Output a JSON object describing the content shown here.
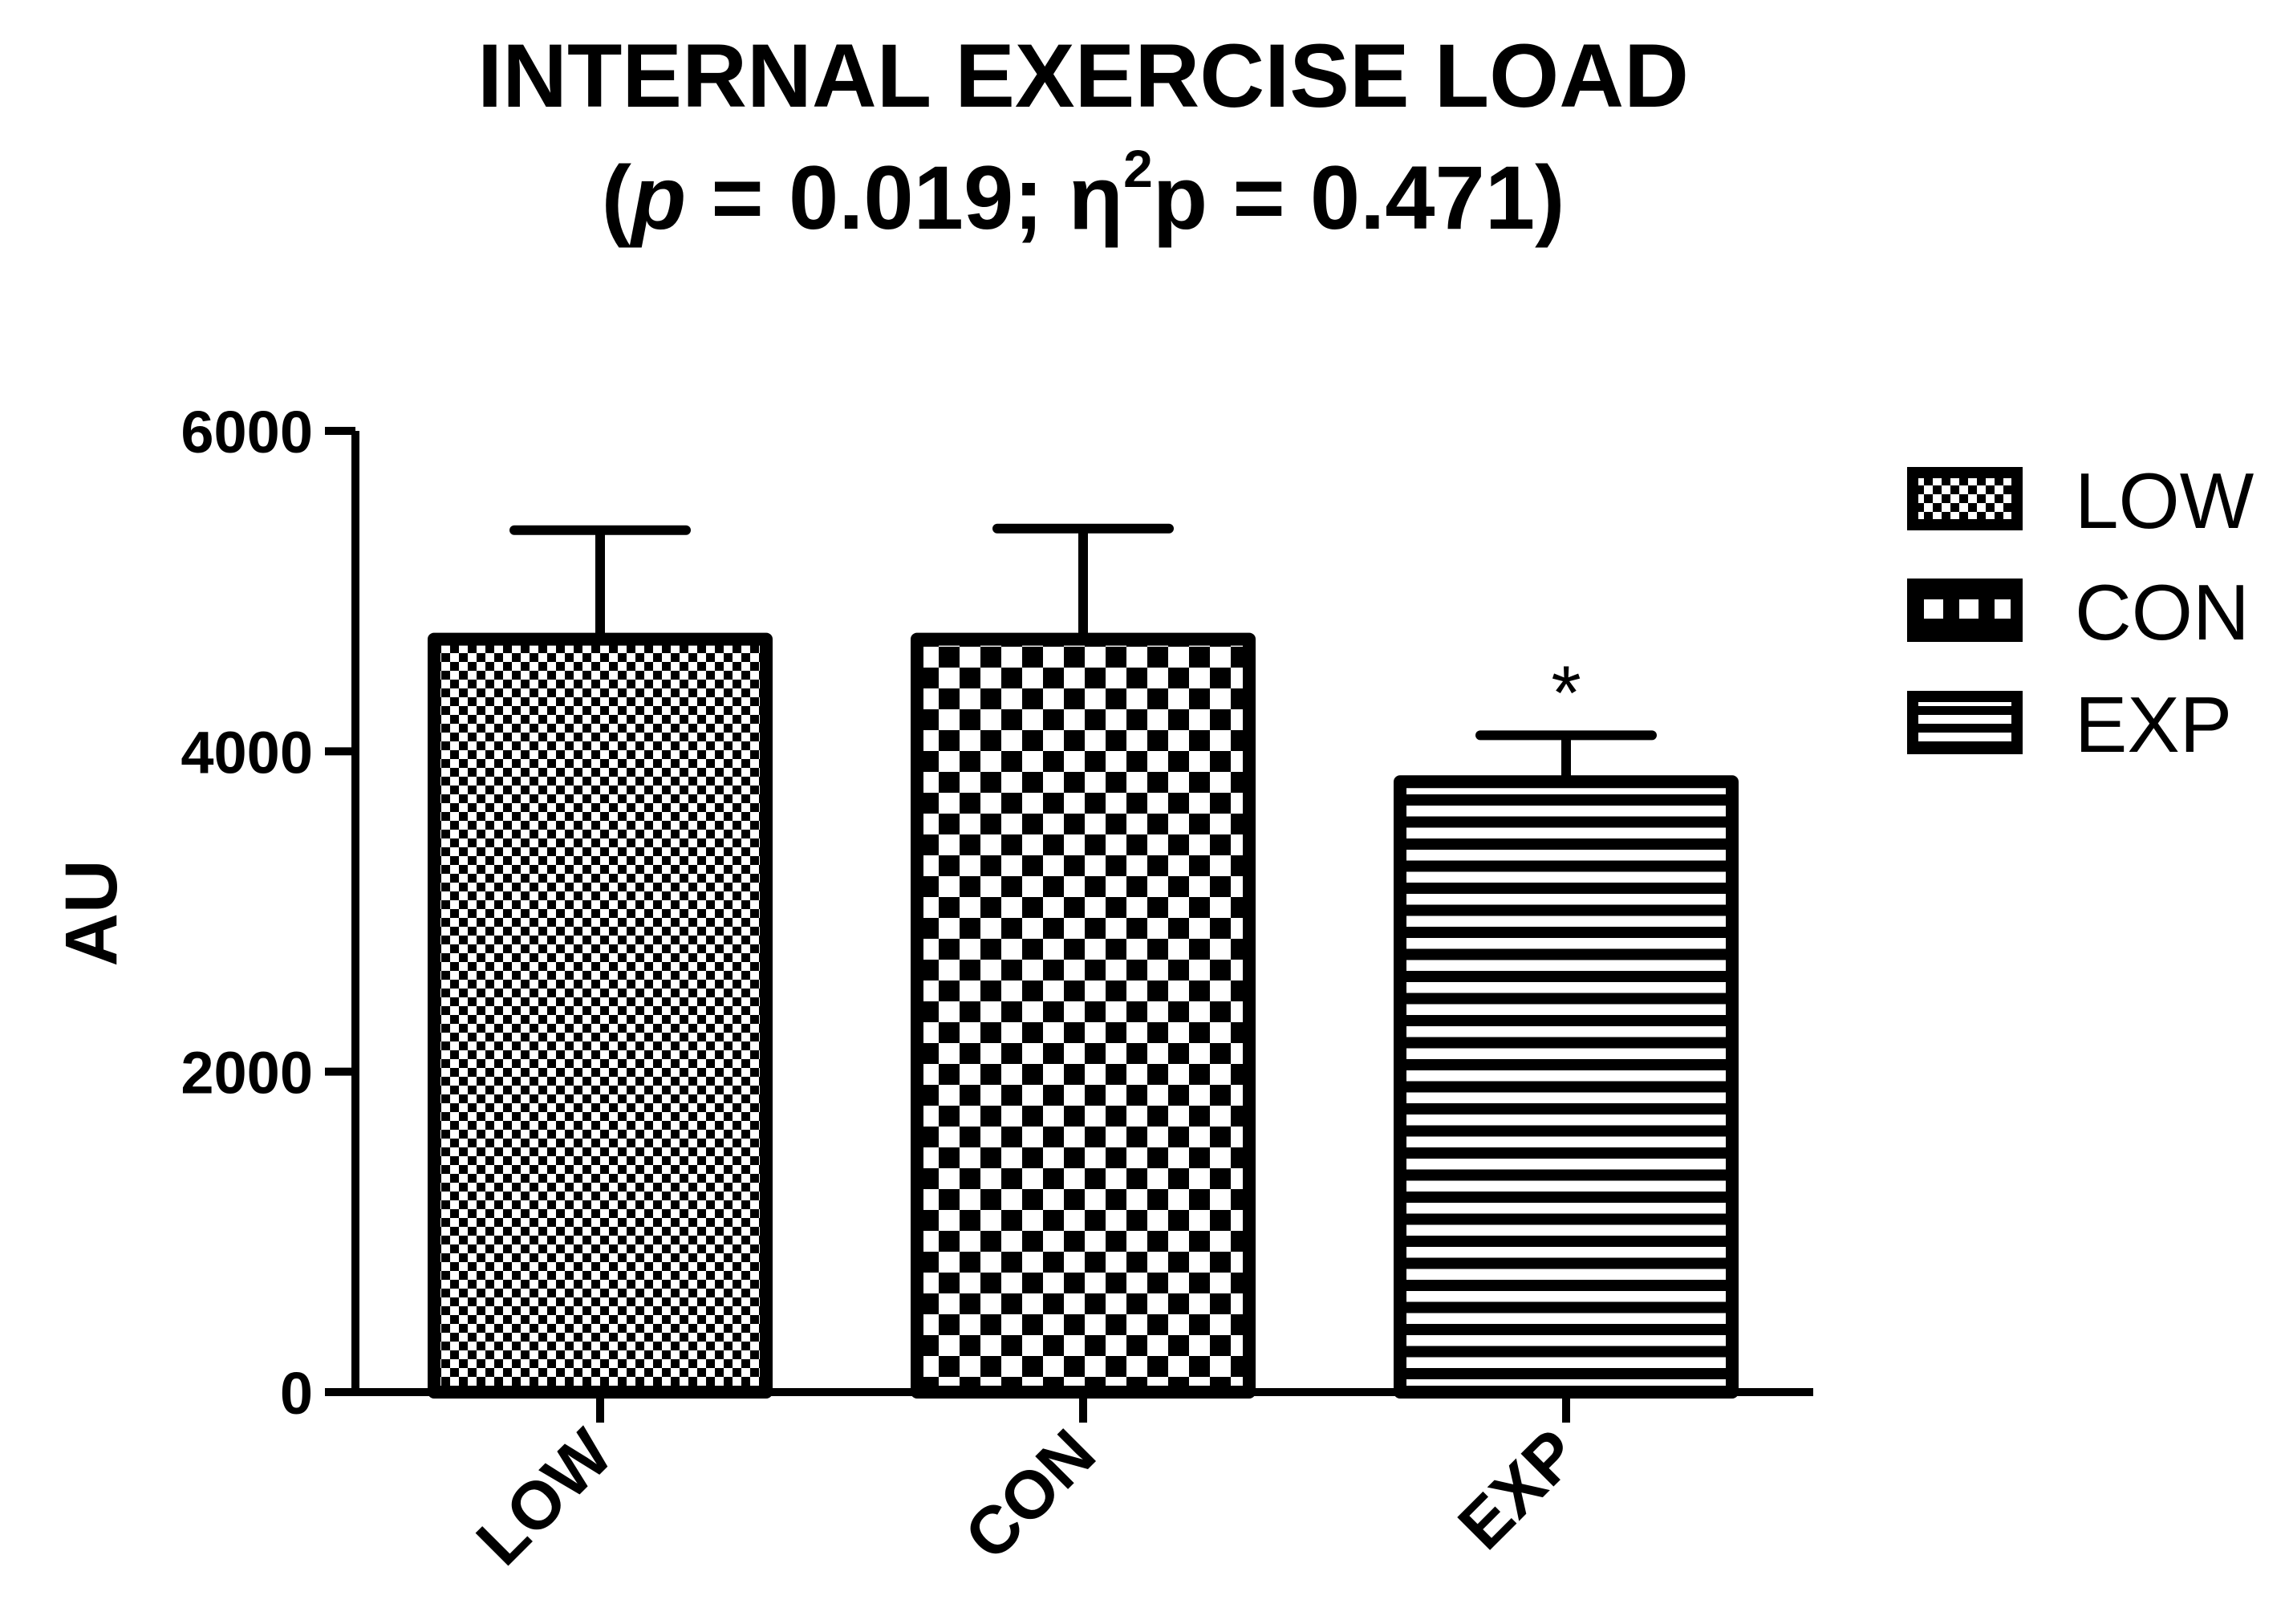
{
  "chart_data": {
    "type": "bar",
    "title": "INTERNAL EXERCISE LOAD",
    "subtitle": {
      "open": "(",
      "p_symbol": "p",
      "p_text": " = 0.019; η",
      "superscript": "2",
      "eta_text": "p = 0.471)"
    },
    "xlabel": "",
    "ylabel": "AU",
    "ylim": [
      0,
      6000
    ],
    "yticks": [
      0,
      2000,
      4000,
      6000
    ],
    "ytick_labels": [
      "0",
      "2000",
      "4000",
      "6000"
    ],
    "categories": [
      "LOW",
      "CON",
      "EXP"
    ],
    "values": [
      4700,
      4700,
      3810
    ],
    "errors": [
      680,
      690,
      290
    ],
    "patterns": [
      "fine-checker",
      "coarse-checker",
      "horizontal-lines"
    ],
    "annotations": [
      {
        "category": "EXP",
        "text": "*"
      }
    ],
    "legend": {
      "position": "right",
      "entries": [
        "LOW",
        "CON",
        "EXP"
      ]
    },
    "colors": {
      "ink": "#000000",
      "background": "#ffffff"
    }
  }
}
